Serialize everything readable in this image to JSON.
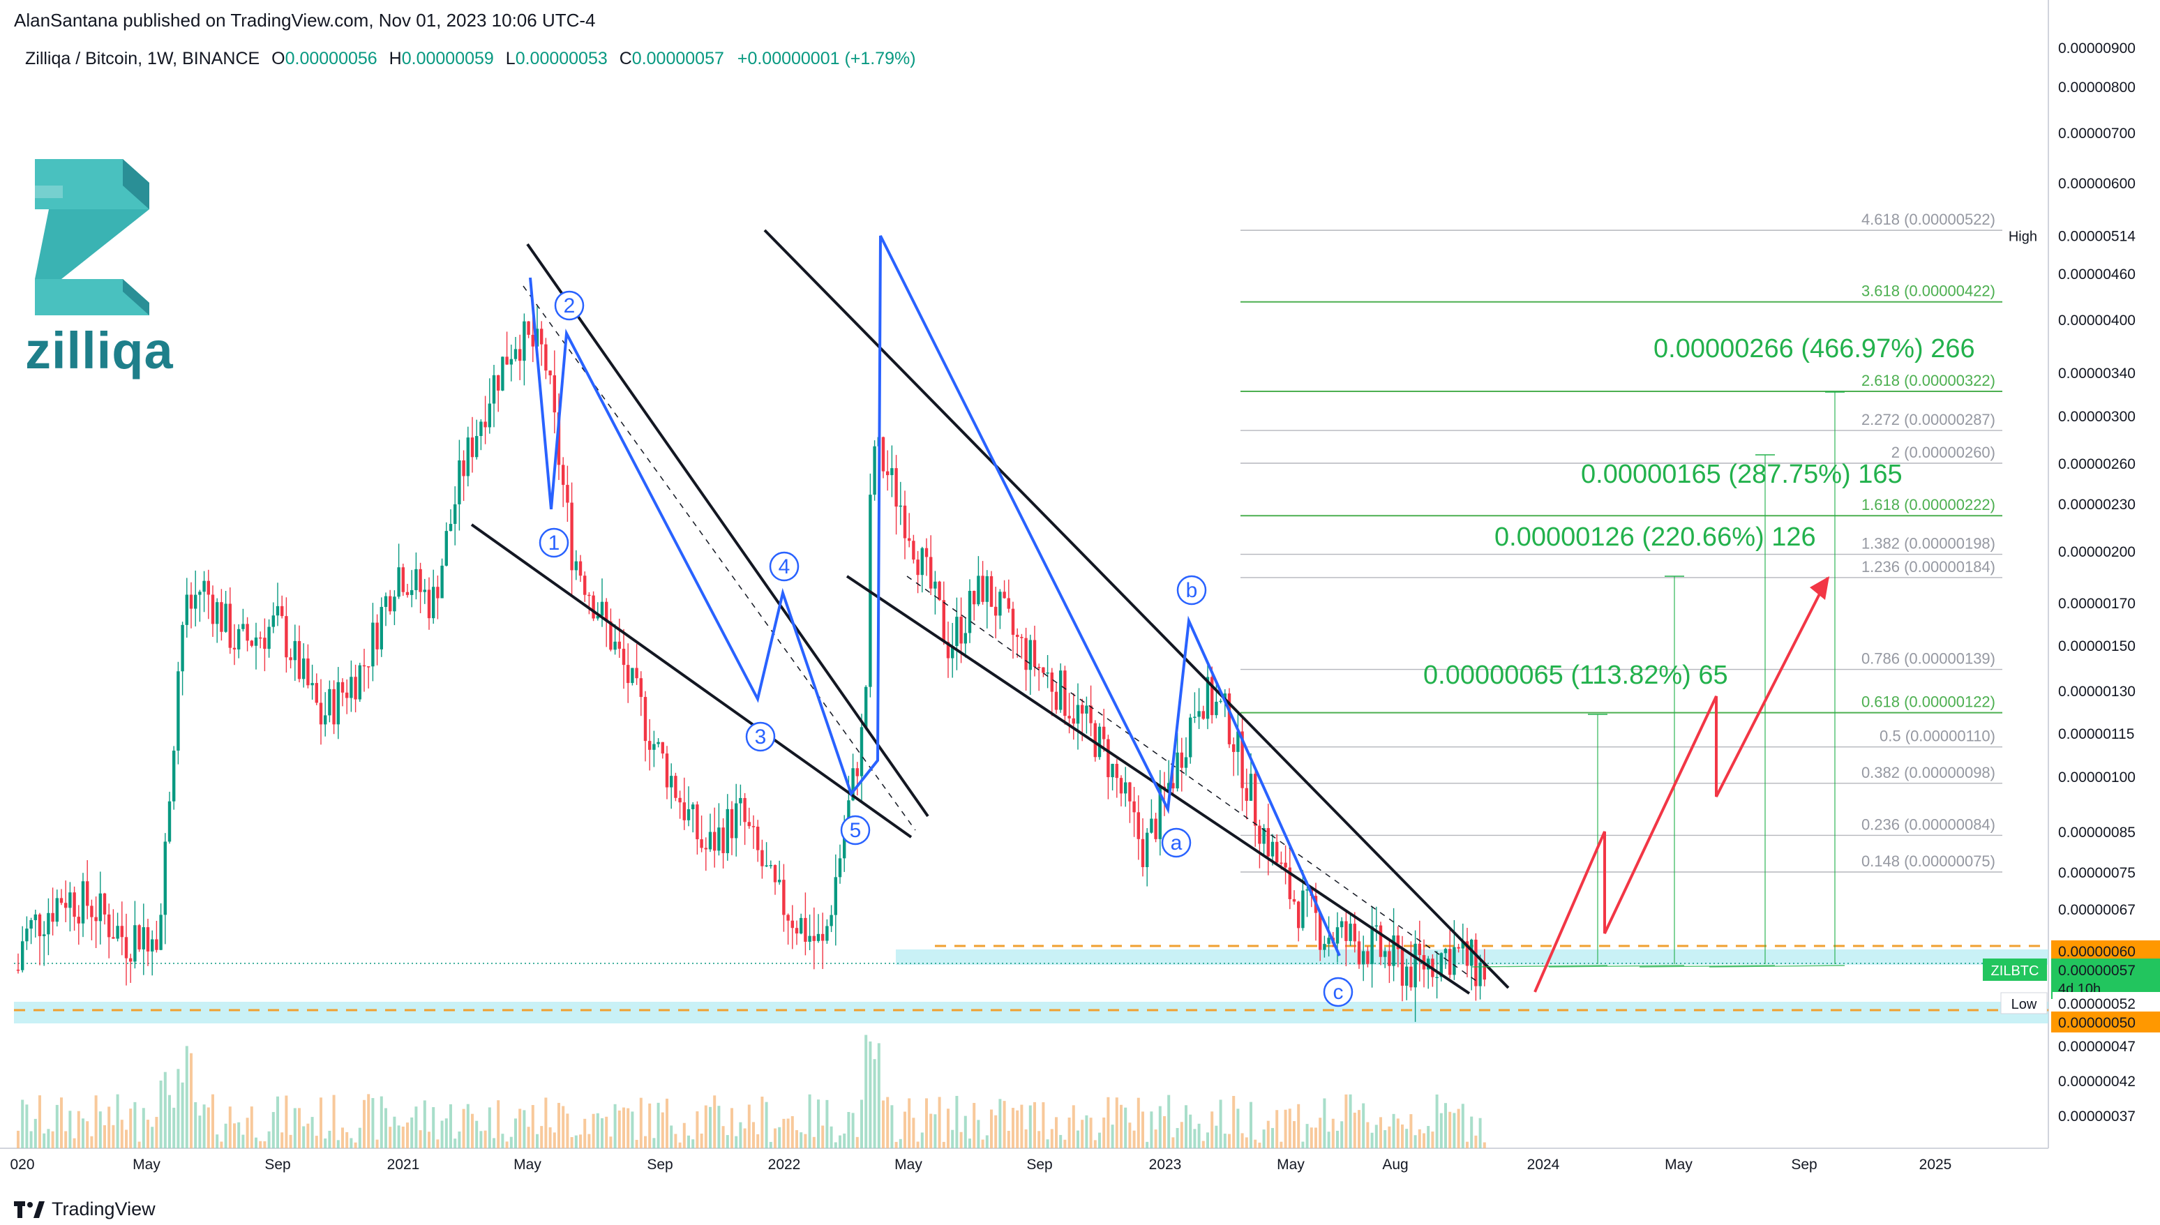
{
  "header": {
    "publisher": "AlanSantana published on TradingView.com, Nov 01, 2023 10:06 UTC-4",
    "symbol": "Zilliqa / Bitcoin, 1W, BINANCE",
    "o_label": "O",
    "o_value": "0.00000056",
    "h_label": "H",
    "h_value": "0.00000059",
    "l_label": "L",
    "l_value": "0.00000053",
    "c_label": "C",
    "c_value": "0.00000057",
    "change": "+0.00000001 (+1.79%)"
  },
  "logo": {
    "text": "zilliqa",
    "icon": "zilliqa-logo-icon"
  },
  "footer": {
    "brand": "TradingView",
    "icon": "tradingview-logo-icon"
  },
  "colors": {
    "up": "#089981",
    "down": "#f23645",
    "wave": "#2962ff",
    "fib": "#9598a1",
    "fib_green": "#4caf50",
    "target": "#22b14c",
    "projection": "#f23645",
    "zone": "#b2ebf2",
    "dash": "#f0a030",
    "price_tag": "#22c55e",
    "level_tag": "#ff9800"
  },
  "chart_data": {
    "type": "candlestick",
    "symbol": "ZILBTC",
    "timeframe": "1W",
    "x_tick_labels": [
      "020",
      "May",
      "Sep",
      "2021",
      "May",
      "Sep",
      "2022",
      "May",
      "Sep",
      "2023",
      "May",
      "Aug",
      "2024",
      "May",
      "Sep",
      "2025"
    ],
    "y_tick_labels": [
      "0.00000900",
      "0.00000800",
      "0.00000700",
      "0.00000600",
      "0.00000460",
      "0.00000400",
      "0.00000340",
      "0.00000300",
      "0.00000260",
      "0.00000230",
      "0.00000200",
      "0.00000170",
      "0.00000150",
      "0.00000130",
      "0.00000115",
      "0.00000100",
      "0.00000085",
      "0.00000075",
      "0.00000067",
      "0.00000047",
      "0.00000042",
      "0.00000037"
    ],
    "y_scale": "log",
    "price_tags": [
      {
        "label": "High",
        "value": "0.00000514"
      },
      {
        "label": "",
        "value": "0.00000060"
      },
      {
        "label": "ZILBTC",
        "value": "0.00000057",
        "sub": "4d 10h"
      },
      {
        "label": "Low",
        "value": "0.00000052"
      },
      {
        "label": "",
        "value": "0.00000050"
      }
    ],
    "fib_levels": [
      {
        "label": "4.618 (0.00000522)",
        "ratio": 4.618,
        "price": 5.22e-06
      },
      {
        "label": "3.618 (0.00000422)",
        "ratio": 3.618,
        "price": 4.22e-06
      },
      {
        "label": "2.618 (0.00000322)",
        "ratio": 2.618,
        "price": 3.22e-06
      },
      {
        "label": "2.272 (0.00000287)",
        "ratio": 2.272,
        "price": 2.87e-06
      },
      {
        "label": "2 (0.00000260)",
        "ratio": 2,
        "price": 2.6e-06
      },
      {
        "label": "1.618 (0.00000222)",
        "ratio": 1.618,
        "price": 2.22e-06
      },
      {
        "label": "1.382 (0.00000198)",
        "ratio": 1.382,
        "price": 1.98e-06
      },
      {
        "label": "1.236 (0.00000184)",
        "ratio": 1.236,
        "price": 1.84e-06
      },
      {
        "label": "0.786 (0.00000139)",
        "ratio": 0.786,
        "price": 1.39e-06
      },
      {
        "label": "0.618 (0.00000122)",
        "ratio": 0.618,
        "price": 1.22e-06
      },
      {
        "label": "0.5 (0.00000110)",
        "ratio": 0.5,
        "price": 1.1e-06
      },
      {
        "label": "0.382 (0.00000098)",
        "ratio": 0.382,
        "price": 9.8e-07
      },
      {
        "label": "0.236 (0.00000084)",
        "ratio": 0.236,
        "price": 8.4e-07
      },
      {
        "label": "0.148 (0.00000075)",
        "ratio": 0.148,
        "price": 7.5e-07
      }
    ],
    "targets": [
      {
        "label": "0.00000266 (466.97%) 266"
      },
      {
        "label": "0.00000165 (287.75%) 165"
      },
      {
        "label": "0.00000126 (220.66%) 126"
      },
      {
        "label": "0.00000065 (113.82%) 65"
      }
    ],
    "wave_labels": [
      "1",
      "2",
      "3",
      "4",
      "5",
      "a",
      "b",
      "c"
    ],
    "support_zones": [
      {
        "from": 5.8e-07,
        "to": 6e-07
      },
      {
        "from": 5e-07,
        "to": 5.2e-07
      }
    ],
    "current_price": 5.7e-07
  }
}
